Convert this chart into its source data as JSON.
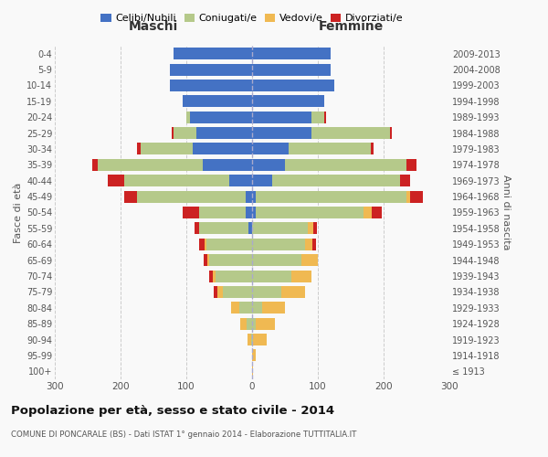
{
  "age_groups": [
    "100+",
    "95-99",
    "90-94",
    "85-89",
    "80-84",
    "75-79",
    "70-74",
    "65-69",
    "60-64",
    "55-59",
    "50-54",
    "45-49",
    "40-44",
    "35-39",
    "30-34",
    "25-29",
    "20-24",
    "15-19",
    "10-14",
    "5-9",
    "0-4"
  ],
  "birth_years": [
    "≤ 1913",
    "1914-1918",
    "1919-1923",
    "1924-1928",
    "1929-1933",
    "1934-1938",
    "1939-1943",
    "1944-1948",
    "1949-1953",
    "1954-1958",
    "1959-1963",
    "1964-1968",
    "1969-1973",
    "1974-1978",
    "1979-1983",
    "1984-1988",
    "1989-1993",
    "1994-1998",
    "1999-2003",
    "2004-2008",
    "2009-2013"
  ],
  "male_celibi": [
    0,
    0,
    0,
    0,
    0,
    0,
    0,
    0,
    0,
    5,
    10,
    10,
    35,
    75,
    90,
    85,
    95,
    105,
    125,
    125,
    120
  ],
  "male_coniugati": [
    0,
    0,
    2,
    8,
    20,
    45,
    55,
    65,
    70,
    75,
    70,
    165,
    160,
    160,
    80,
    35,
    5,
    0,
    0,
    0,
    0
  ],
  "male_vedovi": [
    0,
    0,
    5,
    10,
    12,
    8,
    5,
    3,
    2,
    0,
    0,
    0,
    0,
    0,
    0,
    0,
    0,
    0,
    0,
    0,
    0
  ],
  "male_divorziati": [
    0,
    0,
    0,
    0,
    0,
    5,
    5,
    5,
    8,
    8,
    25,
    20,
    25,
    8,
    5,
    2,
    0,
    0,
    0,
    0,
    0
  ],
  "female_nubili": [
    0,
    0,
    0,
    0,
    0,
    0,
    0,
    0,
    0,
    0,
    5,
    5,
    30,
    50,
    55,
    90,
    90,
    110,
    125,
    120,
    120
  ],
  "female_coniugate": [
    0,
    0,
    2,
    5,
    15,
    45,
    60,
    75,
    80,
    85,
    165,
    230,
    195,
    185,
    125,
    120,
    20,
    0,
    0,
    0,
    0
  ],
  "female_vedove": [
    2,
    5,
    20,
    30,
    35,
    35,
    30,
    25,
    12,
    8,
    12,
    5,
    0,
    0,
    0,
    0,
    0,
    0,
    0,
    0,
    0
  ],
  "female_divorziate": [
    0,
    0,
    0,
    0,
    0,
    0,
    0,
    0,
    5,
    5,
    15,
    20,
    15,
    15,
    5,
    2,
    2,
    0,
    0,
    0,
    0
  ],
  "colors": {
    "celibi": "#4472c4",
    "coniugati": "#b5c98a",
    "vedovi": "#f0b952",
    "divorziati": "#cc2222"
  },
  "xlim": 300,
  "title": "Popolazione per età, sesso e stato civile - 2014",
  "subtitle": "COMUNE DI PONCARALE (BS) - Dati ISTAT 1° gennaio 2014 - Elaborazione TUTTITALIA.IT",
  "label_maschi": "Maschi",
  "label_femmine": "Femmine",
  "ylabel_left": "Fasce di età",
  "ylabel_right": "Anni di nascita",
  "legend_labels": [
    "Celibi/Nubili",
    "Coniugati/e",
    "Vedovi/e",
    "Divorziati/e"
  ],
  "background_color": "#f9f9f9"
}
